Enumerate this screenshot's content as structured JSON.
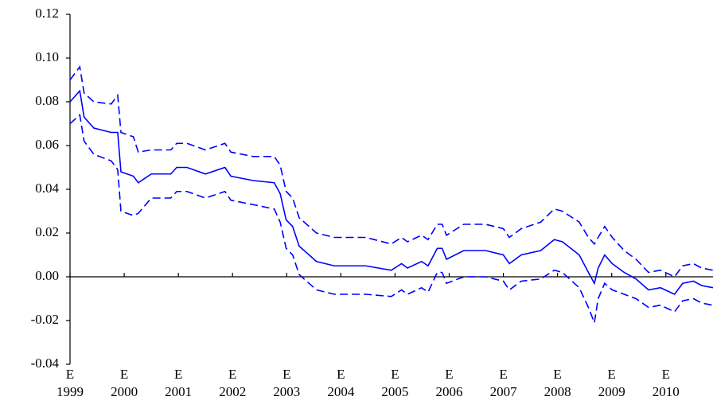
{
  "chart_data": {
    "type": "line",
    "x": [
      1999.0,
      1999.18,
      1999.26,
      1999.44,
      1999.76,
      1999.88,
      1999.94,
      2000.17,
      2000.26,
      2000.5,
      2000.86,
      2000.97,
      2001.16,
      2001.5,
      2001.86,
      2001.97,
      2002.38,
      2002.77,
      2002.88,
      2002.99,
      2003.11,
      2003.23,
      2003.55,
      2003.88,
      2004.46,
      2004.93,
      2005.12,
      2005.23,
      2005.49,
      2005.61,
      2005.78,
      2005.87,
      2005.95,
      2006.27,
      2006.67,
      2007.0,
      2007.11,
      2007.33,
      2007.69,
      2007.94,
      2008.09,
      2008.4,
      2008.57,
      2008.68,
      2008.75,
      2008.87,
      2009.01,
      2009.23,
      2009.45,
      2009.68,
      2009.9,
      2010.16,
      2010.31,
      2010.51,
      2010.66,
      2010.87
    ],
    "series": [
      {
        "color": "#0000ff",
        "dashed": false,
        "values": [
          0.08,
          0.085,
          0.073,
          0.068,
          0.066,
          0.066,
          0.048,
          0.046,
          0.043,
          0.047,
          0.047,
          0.05,
          0.05,
          0.047,
          0.05,
          0.046,
          0.044,
          0.043,
          0.038,
          0.026,
          0.023,
          0.014,
          0.007,
          0.005,
          0.005,
          0.003,
          0.006,
          0.004,
          0.007,
          0.005,
          0.013,
          0.013,
          0.008,
          0.012,
          0.012,
          0.01,
          0.006,
          0.01,
          0.012,
          0.017,
          0.016,
          0.01,
          0.002,
          -0.003,
          0.004,
          0.01,
          0.006,
          0.002,
          -0.001,
          -0.006,
          -0.005,
          -0.008,
          -0.003,
          -0.002,
          -0.004,
          -0.005
        ]
      },
      {
        "color": "#0000ff",
        "dashed": true,
        "values": [
          0.09,
          0.096,
          0.084,
          0.08,
          0.079,
          0.083,
          0.066,
          0.064,
          0.057,
          0.058,
          0.058,
          0.061,
          0.061,
          0.058,
          0.061,
          0.057,
          0.055,
          0.055,
          0.051,
          0.039,
          0.036,
          0.027,
          0.02,
          0.018,
          0.018,
          0.015,
          0.018,
          0.016,
          0.019,
          0.017,
          0.024,
          0.024,
          0.019,
          0.024,
          0.024,
          0.022,
          0.018,
          0.022,
          0.025,
          0.031,
          0.03,
          0.025,
          0.018,
          0.015,
          0.018,
          0.023,
          0.018,
          0.012,
          0.008,
          0.002,
          0.003,
          0.0,
          0.005,
          0.006,
          0.004,
          0.003
        ]
      },
      {
        "color": "#0000ff",
        "dashed": true,
        "values": [
          0.07,
          0.074,
          0.062,
          0.056,
          0.053,
          0.049,
          0.03,
          0.028,
          0.029,
          0.036,
          0.036,
          0.039,
          0.039,
          0.036,
          0.039,
          0.035,
          0.033,
          0.031,
          0.025,
          0.013,
          0.01,
          0.001,
          -0.006,
          -0.008,
          -0.008,
          -0.009,
          -0.006,
          -0.008,
          -0.005,
          -0.007,
          0.002,
          0.002,
          -0.003,
          0.0,
          0.0,
          -0.002,
          -0.006,
          -0.002,
          -0.001,
          0.003,
          0.002,
          -0.005,
          -0.014,
          -0.021,
          -0.01,
          -0.003,
          -0.006,
          -0.008,
          -0.01,
          -0.014,
          -0.013,
          -0.016,
          -0.011,
          -0.01,
          -0.012,
          -0.013
        ]
      }
    ],
    "xlim": [
      1999.0,
      2010.87
    ],
    "xticks": [
      {
        "value": 1999,
        "label": "E\n1999"
      },
      {
        "value": 2000,
        "label": "E\n2000"
      },
      {
        "value": 2001,
        "label": "E\n2001"
      },
      {
        "value": 2002,
        "label": "E\n2002"
      },
      {
        "value": 2003,
        "label": "E\n2003"
      },
      {
        "value": 2004,
        "label": "E\n2004"
      },
      {
        "value": 2005,
        "label": "E\n2005"
      },
      {
        "value": 2006,
        "label": "E\n2006"
      },
      {
        "value": 2007,
        "label": "E\n2007"
      },
      {
        "value": 2008,
        "label": "E\n2008"
      },
      {
        "value": 2009,
        "label": "E\n2009"
      },
      {
        "value": 2010,
        "label": "E\n2010"
      }
    ],
    "ylim": [
      -0.04,
      0.12
    ],
    "yticks": [
      {
        "value": -0.04,
        "label": "-0.04"
      },
      {
        "value": -0.02,
        "label": "-0.02"
      },
      {
        "value": 0,
        "label": "0.00"
      },
      {
        "value": 0.02,
        "label": "0.02"
      },
      {
        "value": 0.04,
        "label": "0.04"
      },
      {
        "value": 0.06,
        "label": "0.06"
      },
      {
        "value": 0.08,
        "label": "0.08"
      },
      {
        "value": 0.1,
        "label": "0.10"
      },
      {
        "value": 0.12,
        "label": "0.12"
      }
    ],
    "grid": false
  }
}
